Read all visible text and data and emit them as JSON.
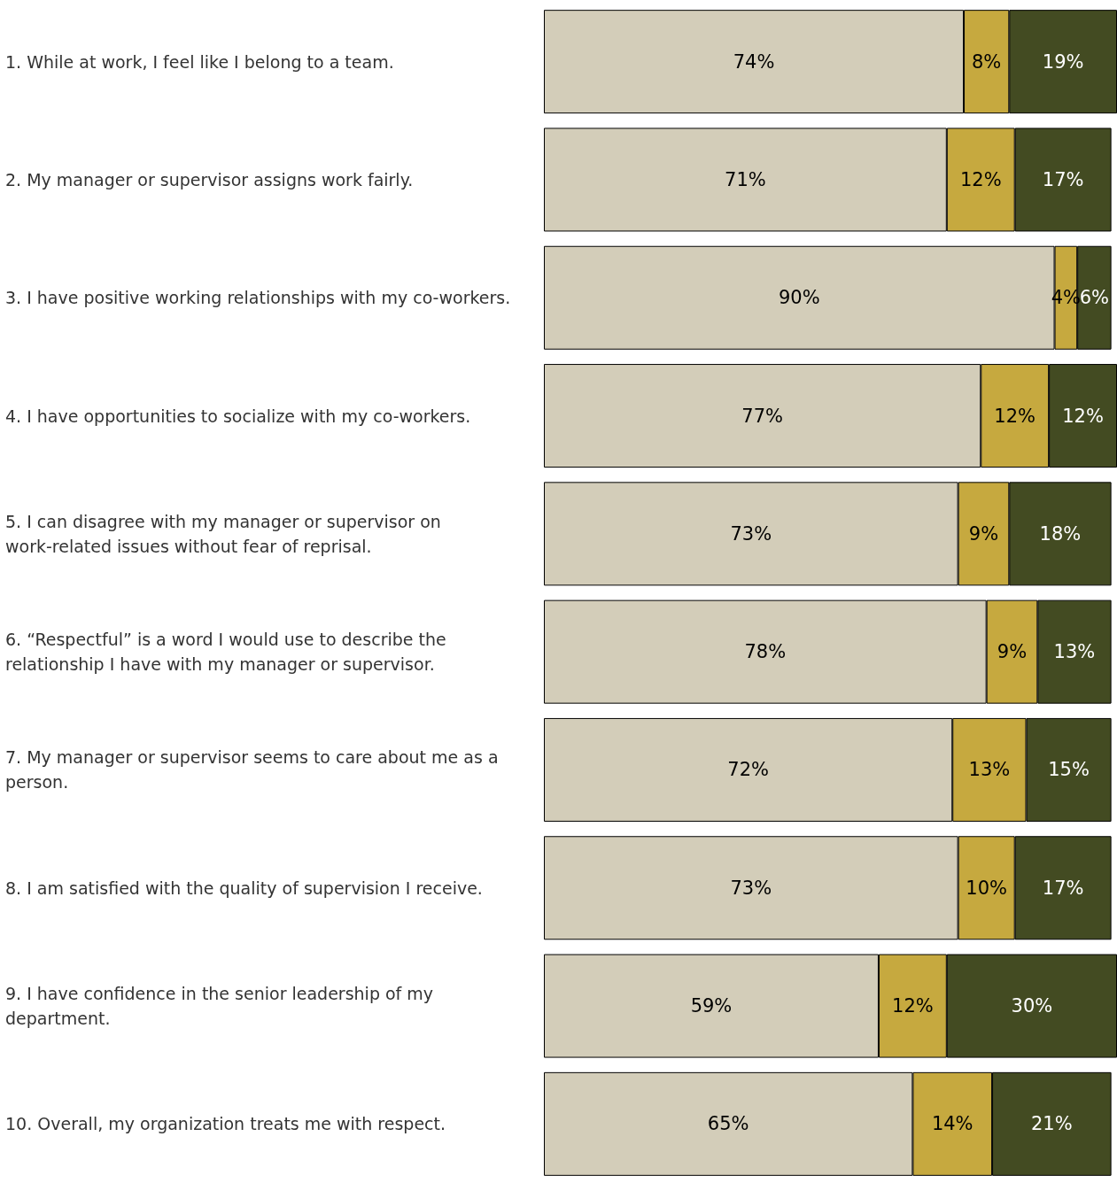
{
  "chart_data": {
    "type": "bar",
    "orientation": "horizontal",
    "stacked": true,
    "xlim": [
      0,
      101
    ],
    "categories": [
      "1. While at work, I feel like I belong to a team.",
      "2. My manager or supervisor assigns work fairly.",
      "3. I have positive working relationships with my co-workers.",
      "4. I have opportunities to socialize with my co-workers.",
      "5. I can disagree with my manager or supervisor on work-related issues without fear of reprisal.",
      "6. “Respectful” is a word I would use to describe the relationship I have with my manager or supervisor.",
      "7. My manager or supervisor seems to care about me as a person.",
      "8. I am satisfied with the quality of supervision I receive.",
      "9. I have confidence in the senior leadership of my department.",
      "10. Overall, my organization treats me with respect."
    ],
    "series": [
      {
        "color": "#d3cdb9",
        "values": [
          74,
          71,
          90,
          77,
          73,
          78,
          72,
          73,
          59,
          65
        ],
        "value_labels": [
          "74%",
          "71%",
          "90%",
          "77%",
          "73%",
          "78%",
          "72%",
          "73%",
          "59%",
          "65%"
        ]
      },
      {
        "color": "#c6a93f",
        "values": [
          8,
          12,
          4,
          12,
          9,
          9,
          13,
          10,
          12,
          14
        ],
        "value_labels": [
          "8%",
          "12%",
          "4%",
          "12%",
          "9%",
          "9%",
          "13%",
          "10%",
          "12%",
          "14%"
        ]
      },
      {
        "color": "#434b22",
        "values": [
          19,
          17,
          6,
          12,
          18,
          13,
          15,
          17,
          30,
          21
        ],
        "value_labels": [
          "19%",
          "17%",
          "6%",
          "12%",
          "18%",
          "13%",
          "15%",
          "17%",
          "30%",
          "21%"
        ]
      }
    ]
  }
}
